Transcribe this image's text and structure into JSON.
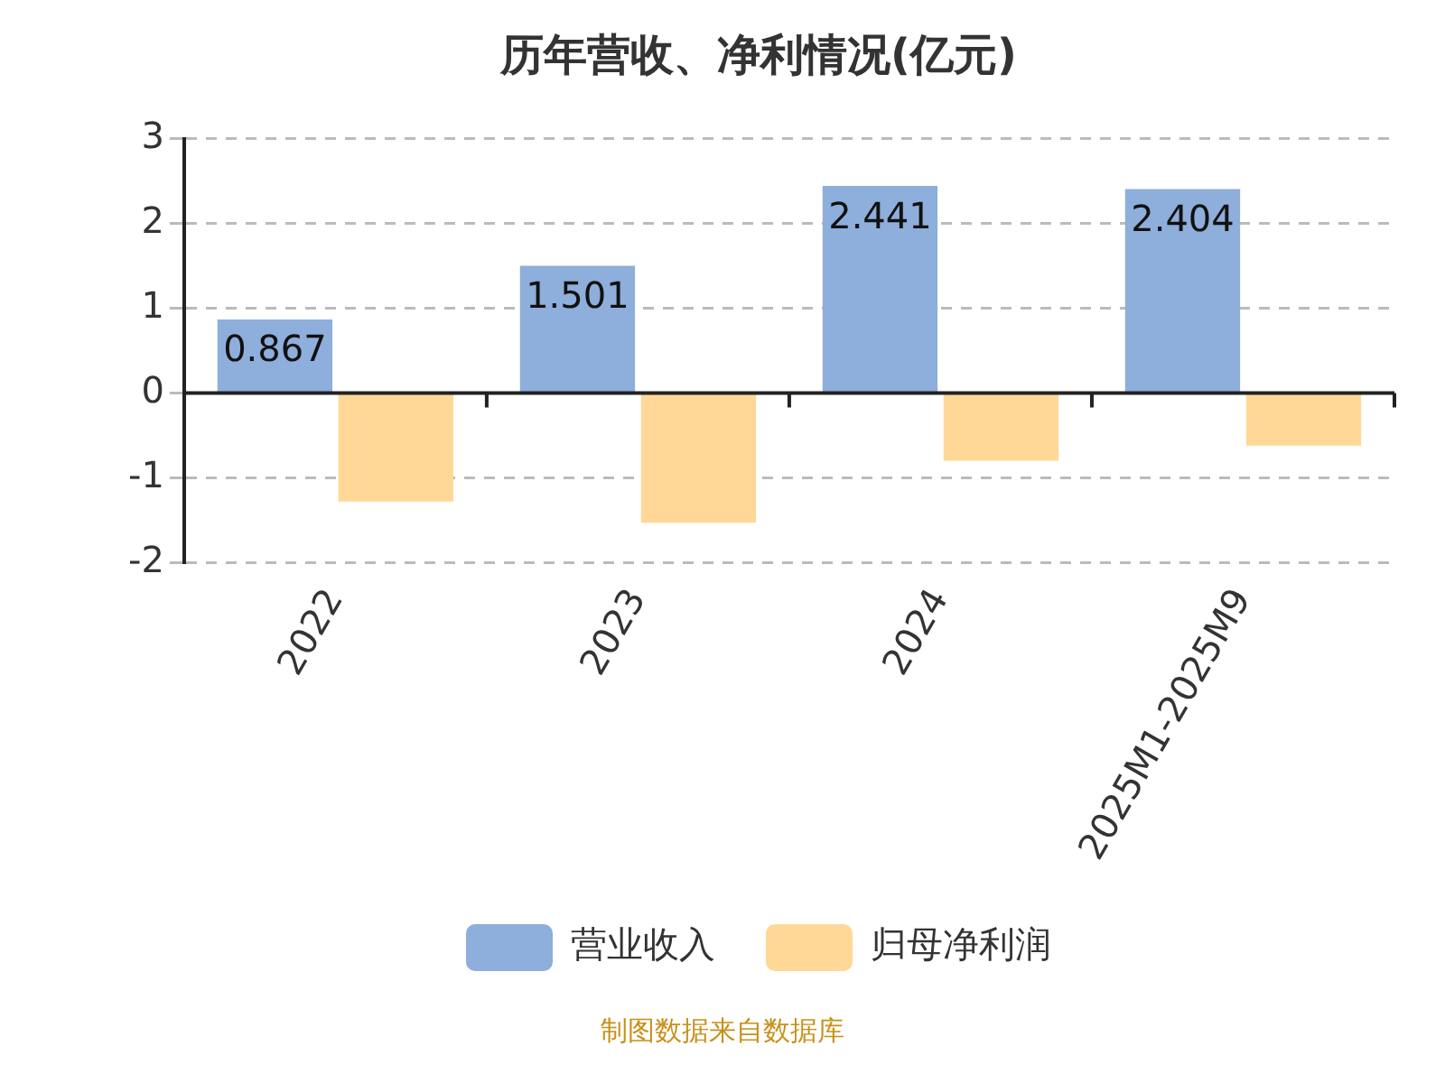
{
  "chart_data": {
    "type": "bar",
    "title": "历年营收、净利情况(亿元)",
    "categories": [
      "2022",
      "2023",
      "2024",
      "2025M1-2025M9"
    ],
    "series": [
      {
        "name": "营业收入",
        "color": "#8eaedb",
        "values": [
          0.867,
          1.501,
          2.441,
          2.404
        ],
        "value_labels": [
          "0.867",
          "1.501",
          "2.441",
          "2.404"
        ]
      },
      {
        "name": "归母净利润",
        "color": "#ffd897",
        "values": [
          -1.28,
          -1.53,
          -0.8,
          -0.62
        ]
      }
    ],
    "ref_lines": [
      {
        "axis": "y",
        "value": 0,
        "color": "#222222"
      }
    ],
    "ylim": [
      -2,
      3
    ],
    "yticks": [
      -2,
      -1,
      0,
      1,
      2,
      3
    ],
    "grid": "y",
    "legend": "bottom",
    "annotations": [
      "制图数据来自数据库"
    ]
  }
}
